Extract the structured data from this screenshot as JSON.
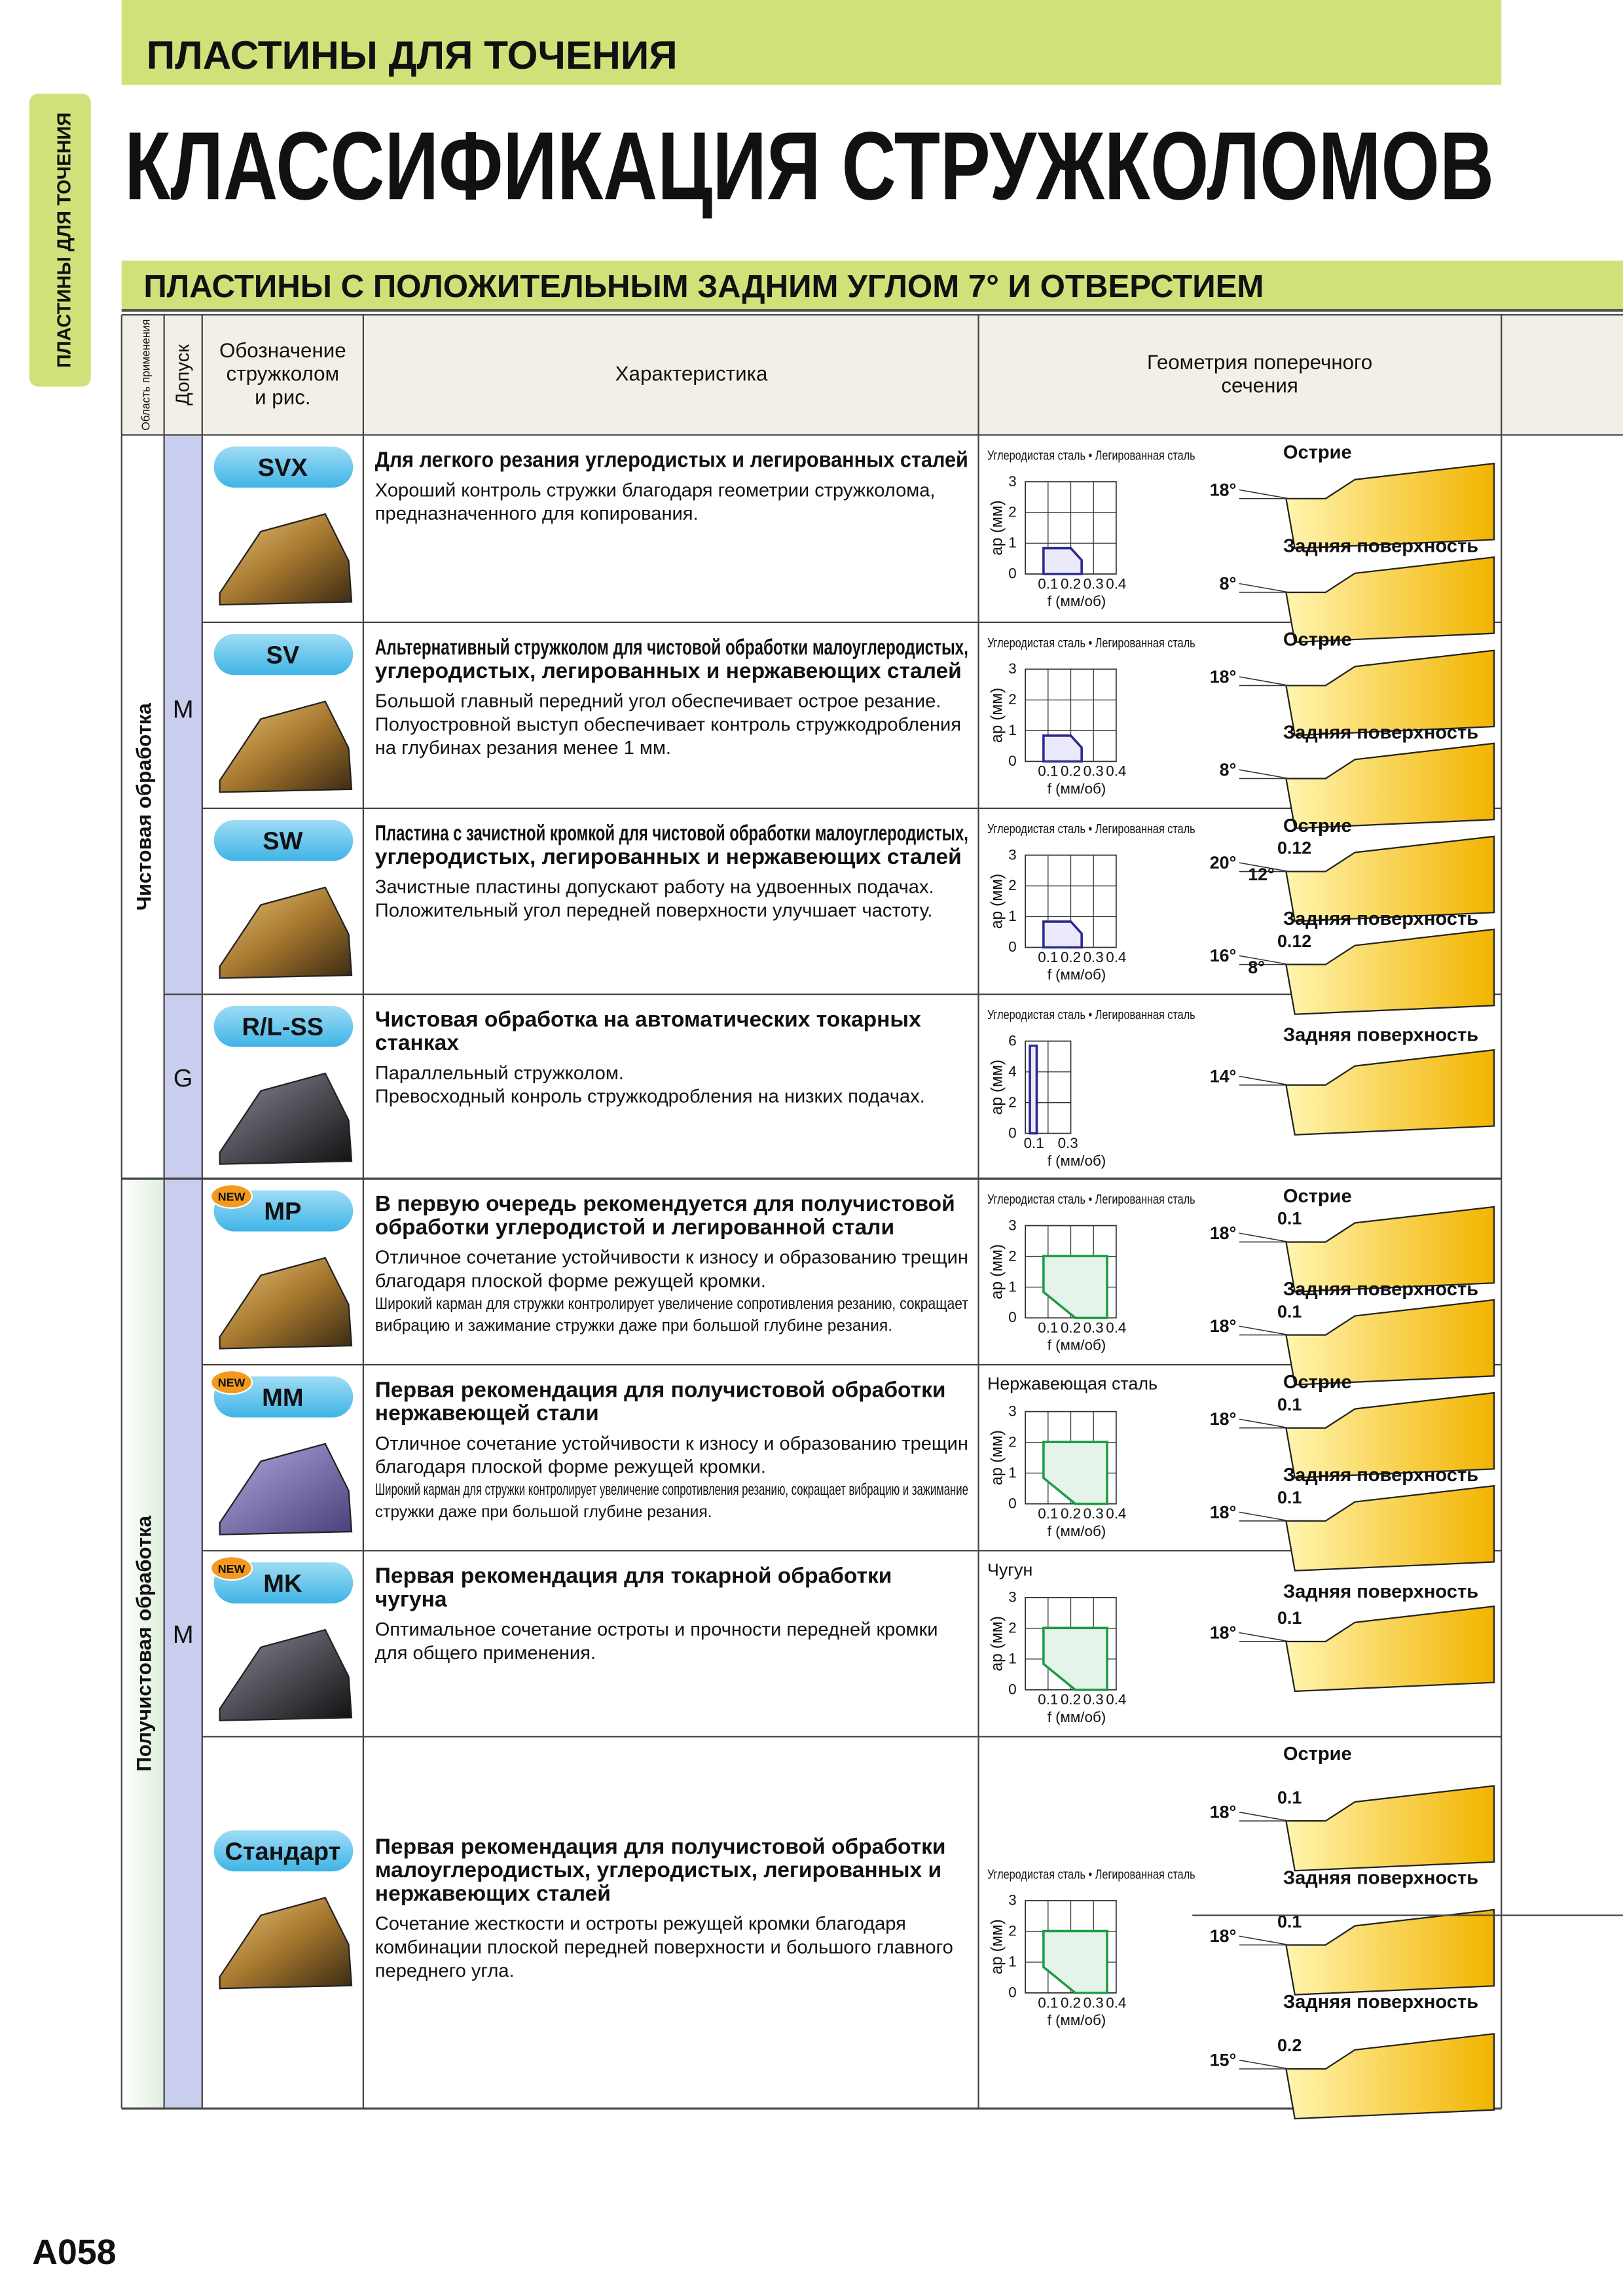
{
  "header": {
    "category": "ПЛАСТИНЫ ДЛЯ ТОЧЕНИЯ",
    "title": "КЛАССИФИКАЦИЯ СТРУЖКОЛОМОВ",
    "side_tab": "ПЛАСТИНЫ ДЛЯ ТОЧЕНИЯ",
    "section": "ПЛАСТИНЫ С ПОЛОЖИТЕЛЬНЫМ ЗАДНИМ УГЛОМ 7° И ОТВЕРСТИЕМ"
  },
  "table": {
    "columns": [
      [
        "Область применения"
      ],
      [
        "Допуск"
      ],
      [
        "Обозначение",
        "стружколом",
        "и рис."
      ],
      [
        "Характеристика"
      ],
      [
        "Геометрия поперечного",
        "сечения"
      ]
    ],
    "groups": [
      {
        "label": "Чистовая обработка"
      },
      {
        "label": "Получистовая обработка"
      }
    ],
    "tolerances": [
      {
        "label": "M"
      },
      {
        "label": "G"
      },
      {
        "label": "M"
      }
    ],
    "rows": [
      {
        "code": "SVX",
        "heading": [
          "Для легкого резания углеродистых и легированных сталей"
        ],
        "body": [
          "Хороший контроль стружки благодаря геометрии стружколома,",
          "предназначенного для копирования."
        ],
        "chart": {
          "caption": "Углеродистая сталь • Легированная сталь",
          "ylabel": "ap (мм)",
          "xlabel": "f (мм/об)",
          "yticks": [
            "0",
            "1",
            "2",
            "3"
          ],
          "xticks": [
            "0.1",
            "0.2",
            "0.3",
            "0.4"
          ]
        },
        "geometry": [
          {
            "label": "Острие",
            "angle": "18°"
          },
          {
            "label": "Задняя поверхность",
            "angle": "8°"
          }
        ]
      },
      {
        "code": "SV",
        "heading": [
          "Альтернативный стружколом для чистовой обработки малоуглеродистых,",
          "углеродистых, легированных и нержавеющих сталей"
        ],
        "body": [
          "Большой главный передний угол обеспечивает острое резание.",
          "Полуостровной выступ обеспечивает контроль стружкодробления",
          "на глубинах резания менее 1 мм."
        ],
        "chart": {
          "caption": "Углеродистая сталь • Легированная сталь",
          "ylabel": "ap (мм)",
          "xlabel": "f (мм/об)",
          "yticks": [
            "0",
            "1",
            "2",
            "3"
          ],
          "xticks": [
            "0.1",
            "0.2",
            "0.3",
            "0.4"
          ]
        },
        "geometry": [
          {
            "label": "Острие",
            "angle": "18°"
          },
          {
            "label": "Задняя поверхность",
            "angle": "8°"
          }
        ]
      },
      {
        "code": "SW",
        "heading": [
          "Пластина с зачистной кромкой для чистовой обработки малоуглеродистых,",
          "углеродистых, легированных и нержавеющих сталей"
        ],
        "body": [
          "Зачистные пластины допускают работу на удвоенных подачах.",
          "Положительный угол передней поверхности улучшает частоту."
        ],
        "chart": {
          "caption": "Углеродистая сталь • Легированная сталь",
          "ylabel": "ap (мм)",
          "xlabel": "f (мм/об)",
          "yticks": [
            "0",
            "1",
            "2",
            "3"
          ],
          "xticks": [
            "0.1",
            "0.2",
            "0.3",
            "0.4"
          ]
        },
        "geometry": [
          {
            "label": "Острие",
            "angle": "20°",
            "dims": [
              "0.12",
              "12°"
            ]
          },
          {
            "label": "Задняя поверхность",
            "angle": "16°",
            "dims": [
              "0.12",
              "8°"
            ]
          }
        ]
      },
      {
        "code": "R/L-SS",
        "heading": [
          "Чистовая обработка на автоматических токарных",
          "станках"
        ],
        "body": [
          "Параллельный стружколом.",
          "Превосходный конроль стружкодробления на низких подачах."
        ],
        "chart": {
          "caption": "Углеродистая сталь • Легированная сталь",
          "ylabel": "ap (мм)",
          "xlabel": "f (мм/об)",
          "yticks": [
            "0",
            "2",
            "4",
            "6"
          ],
          "xticks": [
            "0.1",
            "0.3"
          ]
        },
        "geometry": [
          {
            "label": "Задняя поверхность",
            "angle": "14°"
          }
        ]
      },
      {
        "code": "MP",
        "badge": "NEW",
        "heading": [
          "В первую очередь рекомендуется для получистовой",
          "обработки углеродистой и легированной стали"
        ],
        "body": [
          "Отличное сочетание устойчивости к износу и образованию трещин",
          "благодаря плоской форме режущей кромки."
        ],
        "note": [
          "Широкий карман для стружки контролирует увеличение сопротивления резанию, сокращает",
          "вибрацию и зажимание стружки даже при большой глубине резания."
        ],
        "chart": {
          "caption": "Углеродистая сталь • Легированная сталь",
          "ylabel": "ap (мм)",
          "xlabel": "f (мм/об)",
          "yticks": [
            "0",
            "1",
            "2",
            "3"
          ],
          "xticks": [
            "0.1",
            "0.2",
            "0.3",
            "0.4"
          ]
        },
        "geometry": [
          {
            "label": "Острие",
            "angle": "18°",
            "dims": [
              "0.1"
            ]
          },
          {
            "label": "Задняя поверхность",
            "angle": "18°",
            "dims": [
              "0.1"
            ]
          }
        ]
      },
      {
        "code": "MM",
        "badge": "NEW",
        "heading": [
          "Первая рекомендация для получистовой обработки",
          "нержавеющей стали"
        ],
        "body": [
          "Отличное сочетание устойчивости к износу и образованию трещин",
          "благодаря плоской форме режущей кромки."
        ],
        "note": [
          "Широкий карман для стружки контролирует увеличение сопротивления резанию, сокращает вибрацию и зажимание",
          "стружки даже при большой глубине резания."
        ],
        "chart": {
          "caption": "Нержавеющая сталь",
          "ylabel": "ap (мм)",
          "xlabel": "f (мм/об)",
          "yticks": [
            "0",
            "1",
            "2",
            "3"
          ],
          "xticks": [
            "0.1",
            "0.2",
            "0.3",
            "0.4"
          ]
        },
        "geometry": [
          {
            "label": "Острие",
            "angle": "18°",
            "dims": [
              "0.1"
            ]
          },
          {
            "label": "Задняя поверхность",
            "angle": "18°",
            "dims": [
              "0.1"
            ]
          }
        ]
      },
      {
        "code": "MK",
        "badge": "NEW",
        "heading": [
          "Первая рекомендация для токарной обработки",
          "чугуна"
        ],
        "body": [
          "Оптимальное сочетание остроты и прочности передней кромки",
          "для общего применения."
        ],
        "chart": {
          "caption": "Чугун",
          "ylabel": "ap (мм)",
          "xlabel": "f (мм/об)",
          "yticks": [
            "0",
            "1",
            "2",
            "3"
          ],
          "xticks": [
            "0.1",
            "0.2",
            "0.3",
            "0.4"
          ]
        },
        "geometry": [
          {
            "label": "Задняя поверхность",
            "angle": "18°",
            "dims": [
              "0.1"
            ]
          }
        ]
      },
      {
        "code": "Стандарт",
        "heading": [
          "Первая рекомендация для получистовой обработки",
          "малоуглеродистых, углеродистых, легированных и",
          "нержавеющих сталей"
        ],
        "body": [
          "Сочетание жесткости и остроты режущей кромки благодаря",
          "комбинации плоской передней поверхности и большого главного",
          "переднего угла."
        ],
        "chart": {
          "caption": "Углеродистая сталь • Легированная сталь",
          "ylabel": "ap (мм)",
          "xlabel": "f (мм/об)",
          "yticks": [
            "0",
            "1",
            "2",
            "3"
          ],
          "xticks": [
            "0.1",
            "0.2",
            "0.3",
            "0.4"
          ]
        },
        "geometry": [
          {
            "label": "Острие",
            "angle": "18°",
            "dims": [
              "0.1"
            ]
          },
          {
            "label": "Задняя поверхность",
            "angle": "18°",
            "dims": [
              "0.1"
            ]
          },
          {
            "label": "Задняя поверхность",
            "angle": "15°",
            "dims": [
              "0.2"
            ]
          }
        ]
      }
    ]
  },
  "footer": {
    "page": "A058"
  }
}
